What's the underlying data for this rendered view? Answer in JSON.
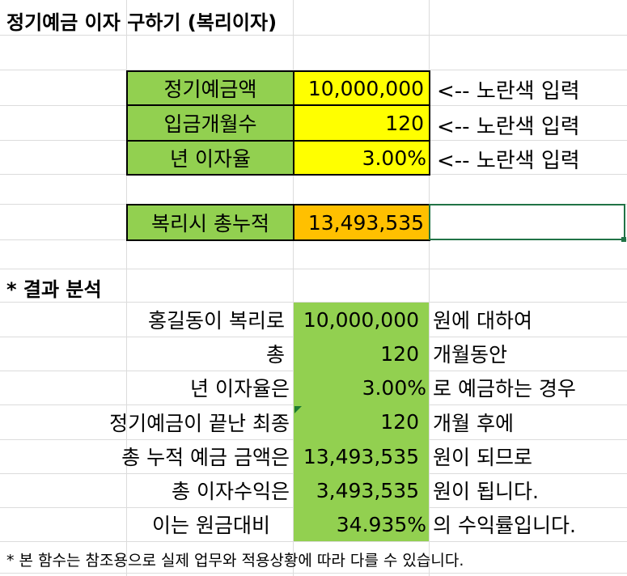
{
  "title": "정기예금 이자 구하기 (복리이자)",
  "inputs": {
    "principal_label": "정기예금액",
    "principal_value": "10,000,000",
    "months_label": "입금개월수",
    "months_value": "120",
    "rate_label": "년 이자율",
    "rate_value": "3.00%",
    "hint": "<-- 노란색 입력"
  },
  "result": {
    "label": "복리시 총누적",
    "value": "13,493,535"
  },
  "analysis": {
    "heading": "* 결과 분석",
    "rows": [
      {
        "left": "홍길동이 복리로",
        "value": "10,000,000",
        "right": "원에 대하여"
      },
      {
        "left": "총",
        "value": "120",
        "right": "개월동안"
      },
      {
        "left": "년 이자율은",
        "value": "3.00%",
        "right": "로 예금하는 경우"
      },
      {
        "left": "정기예금이 끝난 최종",
        "value": "120",
        "right": "개월 후에"
      },
      {
        "left": "총 누적 예금 금액은",
        "value": "13,493,535",
        "right": "원이 되므로"
      },
      {
        "left": "총 이자수익은",
        "value": "3,493,535",
        "right": "원이 됩니다."
      },
      {
        "left": "이는 원금대비",
        "value": "34.935%",
        "right": "의 수익률입니다."
      }
    ]
  },
  "footnote": "* 본 함수는 참조용으로 실제 업무와 적용상황에 따라 다를 수 있습니다.",
  "colors": {
    "input_label": "#92d050",
    "input_value": "#ffff00",
    "result_value": "#ffc000",
    "selection": "#217346"
  }
}
